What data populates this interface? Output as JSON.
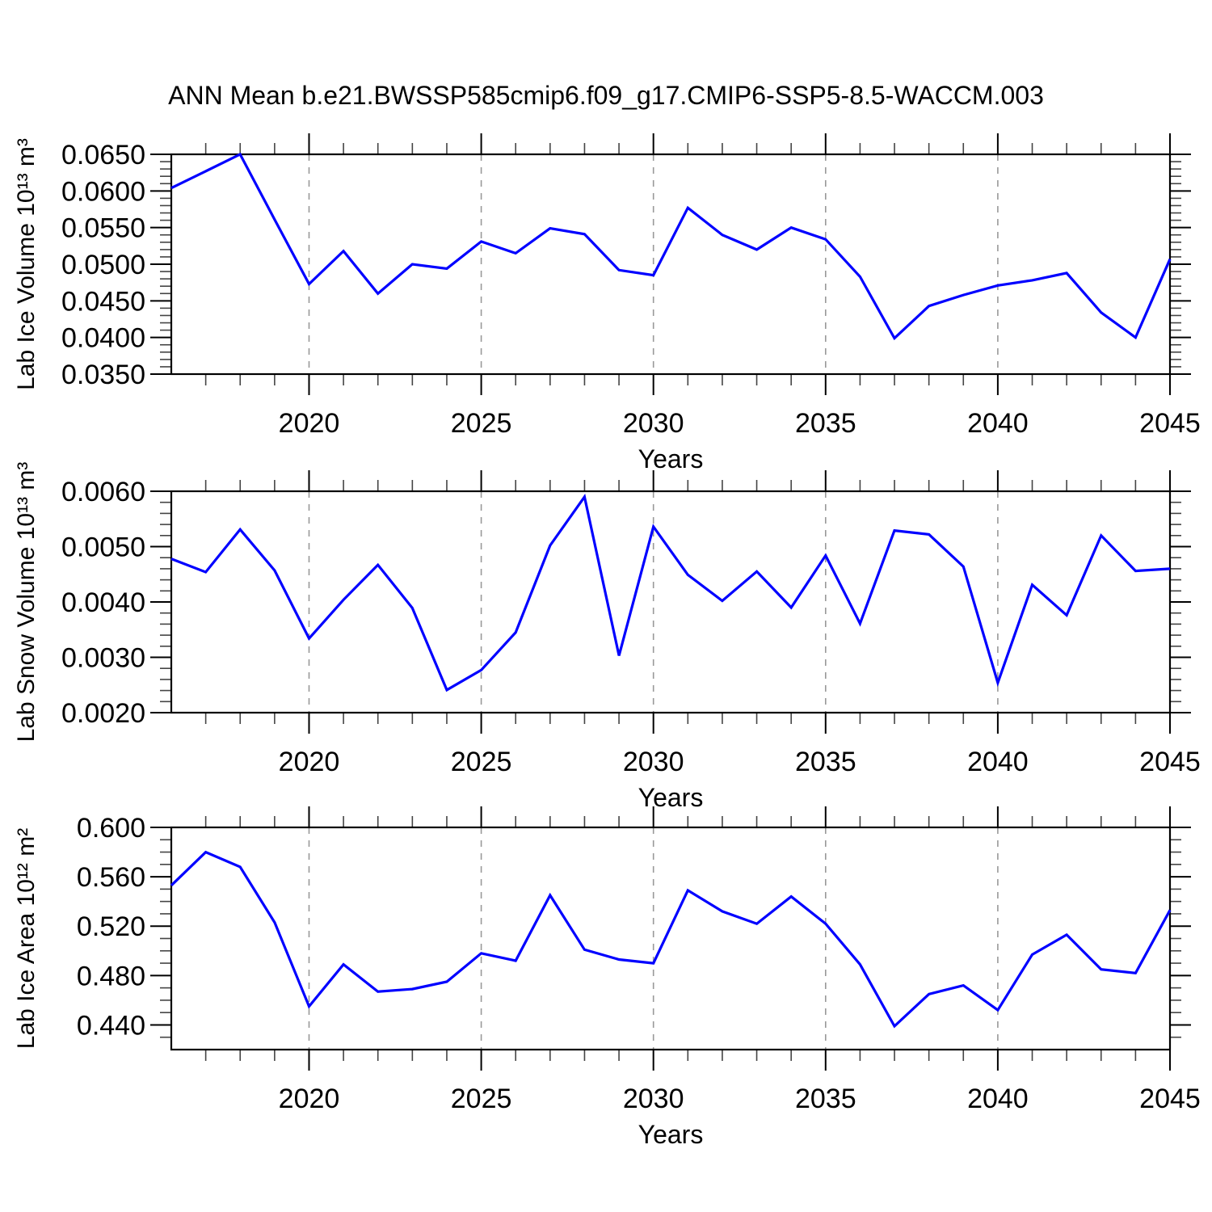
{
  "title": "ANN Mean b.e21.BWSSP585cmip6.f09_g17.CMIP6-SSP5-8.5-WACCM.003",
  "colors": {
    "line": "#0000ff",
    "gridline": "#999999",
    "frame": "#000000",
    "minor_tick": "#444444",
    "text": "#000000",
    "background": "#ffffff"
  },
  "chart_data": [
    {
      "type": "line",
      "ylabel": "Lab Ice Volume 10¹³ m³",
      "xlabel": "Years",
      "x": [
        2016,
        2017,
        2018,
        2019,
        2020,
        2021,
        2022,
        2023,
        2024,
        2025,
        2026,
        2027,
        2028,
        2029,
        2030,
        2031,
        2032,
        2033,
        2034,
        2035,
        2036,
        2037,
        2038,
        2039,
        2040,
        2041,
        2042,
        2043,
        2044,
        2045
      ],
      "values": [
        0.0604,
        0.0627,
        0.065,
        0.0561,
        0.0473,
        0.0518,
        0.046,
        0.05,
        0.0494,
        0.0531,
        0.0515,
        0.0549,
        0.0541,
        0.0492,
        0.0485,
        0.0577,
        0.054,
        0.052,
        0.055,
        0.0534,
        0.0483,
        0.0399,
        0.0443,
        0.0458,
        0.0471,
        0.0478,
        0.0488,
        0.0434,
        0.04,
        0.0507
      ],
      "xlim": [
        2016,
        2045
      ],
      "ylim": [
        0.035,
        0.065
      ],
      "grid": "vertical-dashed",
      "legend": "none",
      "yticks": [
        {
          "v": 0.065,
          "label": "0.0650"
        },
        {
          "v": 0.06,
          "label": "0.0600"
        },
        {
          "v": 0.055,
          "label": "0.0550"
        },
        {
          "v": 0.05,
          "label": "0.0500"
        },
        {
          "v": 0.045,
          "label": "0.0450"
        },
        {
          "v": 0.04,
          "label": "0.0400"
        },
        {
          "v": 0.035,
          "label": "0.0350"
        }
      ],
      "yminor_step": 0.001,
      "xticks": [
        {
          "v": 2020,
          "label": "2020"
        },
        {
          "v": 2025,
          "label": "2025"
        },
        {
          "v": 2030,
          "label": "2030"
        },
        {
          "v": 2035,
          "label": "2035"
        },
        {
          "v": 2040,
          "label": "2040"
        },
        {
          "v": 2045,
          "label": "2045"
        }
      ],
      "xminor_step": 1
    },
    {
      "type": "line",
      "ylabel": "Lab Snow Volume 10¹³ m³",
      "xlabel": "Years",
      "x": [
        2016,
        2017,
        2018,
        2019,
        2020,
        2021,
        2022,
        2023,
        2024,
        2025,
        2026,
        2027,
        2028,
        2029,
        2030,
        2031,
        2032,
        2033,
        2034,
        2035,
        2036,
        2037,
        2038,
        2039,
        2040,
        2041,
        2042,
        2043,
        2044,
        2045
      ],
      "values": [
        0.00478,
        0.00454,
        0.00531,
        0.00457,
        0.00334,
        0.00404,
        0.00467,
        0.00389,
        0.00241,
        0.00277,
        0.00345,
        0.00502,
        0.0059,
        0.00303,
        0.00536,
        0.00449,
        0.00402,
        0.00455,
        0.0039,
        0.00484,
        0.00361,
        0.00529,
        0.00522,
        0.00464,
        0.00254,
        0.00431,
        0.00376,
        0.0052,
        0.00456,
        0.0046
      ],
      "xlim": [
        2016,
        2045
      ],
      "ylim": [
        0.002,
        0.006
      ],
      "grid": "vertical-dashed",
      "legend": "none",
      "yticks": [
        {
          "v": 0.006,
          "label": "0.0060"
        },
        {
          "v": 0.005,
          "label": "0.0050"
        },
        {
          "v": 0.004,
          "label": "0.0040"
        },
        {
          "v": 0.003,
          "label": "0.0030"
        },
        {
          "v": 0.002,
          "label": "0.0020"
        }
      ],
      "yminor_step": 0.0002,
      "xticks": [
        {
          "v": 2020,
          "label": "2020"
        },
        {
          "v": 2025,
          "label": "2025"
        },
        {
          "v": 2030,
          "label": "2030"
        },
        {
          "v": 2035,
          "label": "2035"
        },
        {
          "v": 2040,
          "label": "2040"
        },
        {
          "v": 2045,
          "label": "2045"
        }
      ],
      "xminor_step": 1
    },
    {
      "type": "line",
      "ylabel": "Lab Ice Area 10¹² m²",
      "xlabel": "Years",
      "x": [
        2016,
        2017,
        2018,
        2019,
        2020,
        2021,
        2022,
        2023,
        2024,
        2025,
        2026,
        2027,
        2028,
        2029,
        2030,
        2031,
        2032,
        2033,
        2034,
        2035,
        2036,
        2037,
        2038,
        2039,
        2040,
        2041,
        2042,
        2043,
        2044,
        2045
      ],
      "values": [
        0.553,
        0.58,
        0.568,
        0.523,
        0.455,
        0.489,
        0.467,
        0.469,
        0.475,
        0.498,
        0.492,
        0.545,
        0.501,
        0.493,
        0.49,
        0.549,
        0.532,
        0.522,
        0.544,
        0.522,
        0.489,
        0.439,
        0.465,
        0.472,
        0.452,
        0.497,
        0.513,
        0.485,
        0.482,
        0.533
      ],
      "xlim": [
        2016,
        2045
      ],
      "ylim": [
        0.42,
        0.6
      ],
      "grid": "vertical-dashed",
      "legend": "none",
      "yticks": [
        {
          "v": 0.6,
          "label": "0.600"
        },
        {
          "v": 0.56,
          "label": "0.560"
        },
        {
          "v": 0.52,
          "label": "0.520"
        },
        {
          "v": 0.48,
          "label": "0.480"
        },
        {
          "v": 0.44,
          "label": "0.440"
        }
      ],
      "yminor_step": 0.01,
      "xticks": [
        {
          "v": 2020,
          "label": "2020"
        },
        {
          "v": 2025,
          "label": "2025"
        },
        {
          "v": 2030,
          "label": "2030"
        },
        {
          "v": 2035,
          "label": "2035"
        },
        {
          "v": 2040,
          "label": "2040"
        },
        {
          "v": 2045,
          "label": "2045"
        }
      ],
      "xminor_step": 1
    }
  ]
}
